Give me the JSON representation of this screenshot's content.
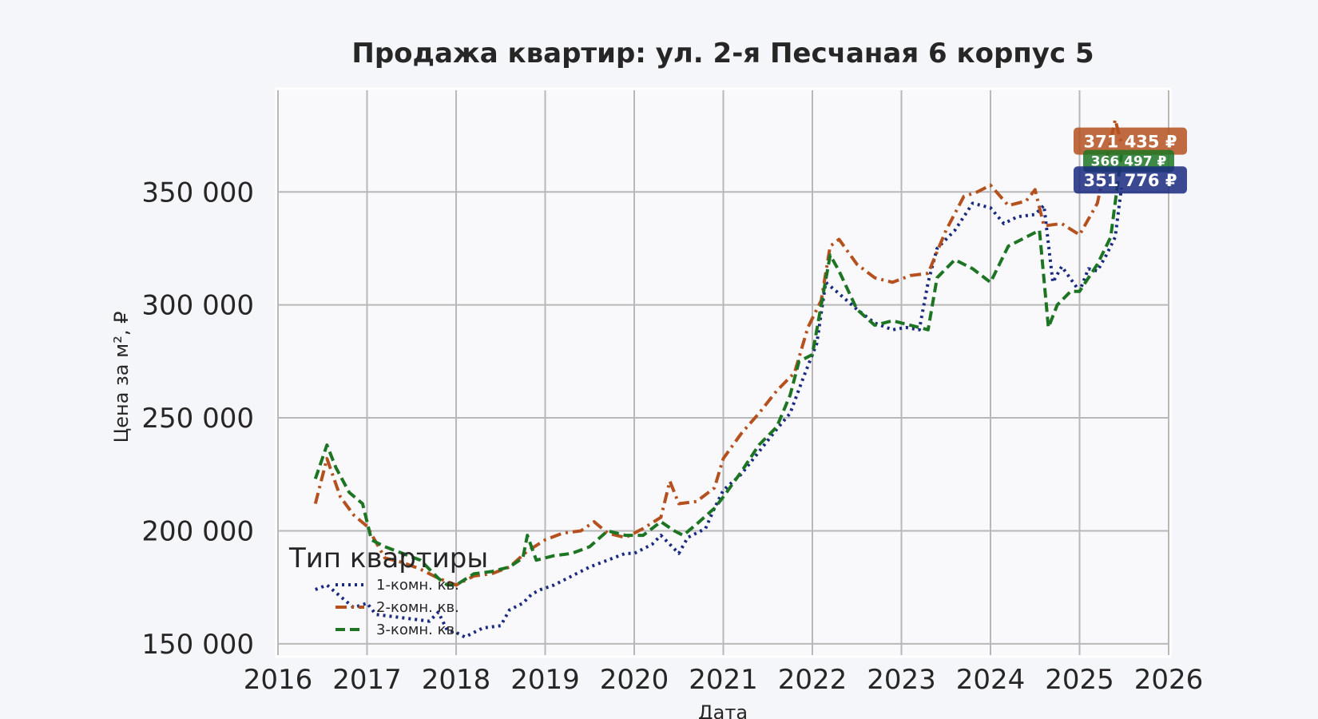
{
  "chart_data": {
    "type": "line",
    "title": "Продажа квартир: ул. 2-я Песчаная 6 корпус 5",
    "xlabel": "Дата",
    "ylabel": "Цена за м², ₽",
    "xlim": [
      2016,
      2026
    ],
    "ylim": [
      145000,
      395000
    ],
    "x_ticks": [
      "2016",
      "2017",
      "2018",
      "2019",
      "2020",
      "2021",
      "2022",
      "2023",
      "2024",
      "2025",
      "2026"
    ],
    "y_ticks": [
      {
        "value": 150000,
        "label": "150 000"
      },
      {
        "value": 200000,
        "label": "200 000"
      },
      {
        "value": 250000,
        "label": "250 000"
      },
      {
        "value": 300000,
        "label": "300 000"
      },
      {
        "value": 350000,
        "label": "350 000"
      }
    ],
    "grid": true,
    "legend": {
      "title": "Тип квартиры",
      "placement": "lower-left"
    },
    "series": [
      {
        "name": "1-комн. кв.",
        "color": "#1a2a80",
        "style": "dotted",
        "end_label": "351 776 ₽",
        "x": [
          2016.42,
          2016.55,
          2016.7,
          2016.85,
          2017.0,
          2017.1,
          2017.3,
          2017.5,
          2017.7,
          2017.8,
          2017.9,
          2018.0,
          2018.1,
          2018.2,
          2018.3,
          2018.5,
          2018.6,
          2018.75,
          2018.85,
          2018.95,
          2019.1,
          2019.3,
          2019.5,
          2019.7,
          2019.9,
          2020.0,
          2020.2,
          2020.3,
          2020.5,
          2020.6,
          2020.8,
          2020.9,
          2021.0,
          2021.2,
          2021.4,
          2021.6,
          2021.75,
          2021.9,
          2022.05,
          2022.15,
          2022.3,
          2022.5,
          2022.7,
          2022.9,
          2023.05,
          2023.2,
          2023.3,
          2023.4,
          2023.6,
          2023.8,
          2024.0,
          2024.15,
          2024.3,
          2024.5,
          2024.6,
          2024.7,
          2024.8,
          2025.0,
          2025.1,
          2025.2,
          2025.3,
          2025.4,
          2025.47
        ],
        "values": [
          174000,
          176000,
          171000,
          166000,
          168000,
          163000,
          162000,
          161000,
          160000,
          164000,
          156000,
          155000,
          153000,
          155000,
          157000,
          158000,
          165000,
          168000,
          172000,
          174000,
          176000,
          180000,
          184000,
          187000,
          190000,
          190000,
          194000,
          198000,
          190000,
          197000,
          201000,
          210000,
          218000,
          225000,
          235000,
          245000,
          252000,
          268000,
          283000,
          310000,
          305000,
          298000,
          292000,
          289000,
          290000,
          289000,
          310000,
          325000,
          333000,
          345000,
          343000,
          336000,
          339000,
          340000,
          344000,
          310000,
          317000,
          306000,
          316000,
          315000,
          322000,
          330000,
          351776
        ]
      },
      {
        "name": "2-комн. кв.",
        "color": "#b5511e",
        "style": "dashdot",
        "end_label": "371 435 ₽",
        "x": [
          2016.42,
          2016.55,
          2016.7,
          2016.85,
          2017.0,
          2017.2,
          2017.4,
          2017.6,
          2017.8,
          2018.0,
          2018.2,
          2018.4,
          2018.6,
          2018.8,
          2019.0,
          2019.2,
          2019.4,
          2019.55,
          2019.7,
          2019.9,
          2020.1,
          2020.3,
          2020.4,
          2020.5,
          2020.7,
          2020.9,
          2021.0,
          2021.2,
          2021.4,
          2021.6,
          2021.8,
          2021.95,
          2022.1,
          2022.2,
          2022.3,
          2022.5,
          2022.7,
          2022.9,
          2023.1,
          2023.3,
          2023.5,
          2023.7,
          2023.85,
          2024.0,
          2024.2,
          2024.4,
          2024.5,
          2024.6,
          2024.8,
          2025.0,
          2025.2,
          2025.4,
          2025.47
        ],
        "values": [
          212000,
          232000,
          215000,
          207000,
          202000,
          188000,
          186000,
          183000,
          179000,
          176000,
          180000,
          181000,
          184000,
          191000,
          196000,
          199000,
          200000,
          204000,
          199000,
          197000,
          201000,
          206000,
          222000,
          212000,
          213000,
          219000,
          232000,
          243000,
          252000,
          262000,
          270000,
          290000,
          302000,
          326000,
          329000,
          318000,
          312000,
          310000,
          313000,
          314000,
          333000,
          348000,
          350000,
          353000,
          344000,
          346000,
          351000,
          335000,
          336000,
          331000,
          345000,
          382000,
          371435
        ]
      },
      {
        "name": "3-комн. кв.",
        "color": "#1d7524",
        "style": "dashed",
        "end_label": "366 497 ₽",
        "x": [
          2016.42,
          2016.55,
          2016.65,
          2016.8,
          2016.95,
          2017.05,
          2017.2,
          2017.4,
          2017.6,
          2017.8,
          2017.9,
          2018.0,
          2018.2,
          2018.4,
          2018.6,
          2018.75,
          2018.8,
          2018.9,
          2019.1,
          2019.3,
          2019.5,
          2019.7,
          2019.9,
          2020.1,
          2020.3,
          2020.45,
          2020.55,
          2020.7,
          2020.9,
          2021.0,
          2021.2,
          2021.4,
          2021.6,
          2021.75,
          2021.85,
          2022.0,
          2022.1,
          2022.2,
          2022.3,
          2022.5,
          2022.7,
          2022.9,
          2023.1,
          2023.3,
          2023.4,
          2023.6,
          2023.8,
          2024.0,
          2024.2,
          2024.4,
          2024.55,
          2024.65,
          2024.75,
          2024.9,
          2025.0,
          2025.2,
          2025.35,
          2025.47
        ],
        "values": [
          223000,
          238000,
          228000,
          217000,
          212000,
          196000,
          193000,
          190000,
          187000,
          179000,
          176000,
          176000,
          181000,
          182000,
          184000,
          188000,
          198000,
          187000,
          189000,
          190000,
          193000,
          200000,
          198000,
          198000,
          204000,
          200000,
          198000,
          203000,
          210000,
          215000,
          226000,
          238000,
          246000,
          260000,
          275000,
          278000,
          300000,
          322000,
          315000,
          298000,
          291000,
          293000,
          291000,
          289000,
          312000,
          320000,
          316000,
          310000,
          326000,
          330000,
          333000,
          290000,
          300000,
          306000,
          306000,
          318000,
          330000,
          366497
        ]
      }
    ]
  }
}
